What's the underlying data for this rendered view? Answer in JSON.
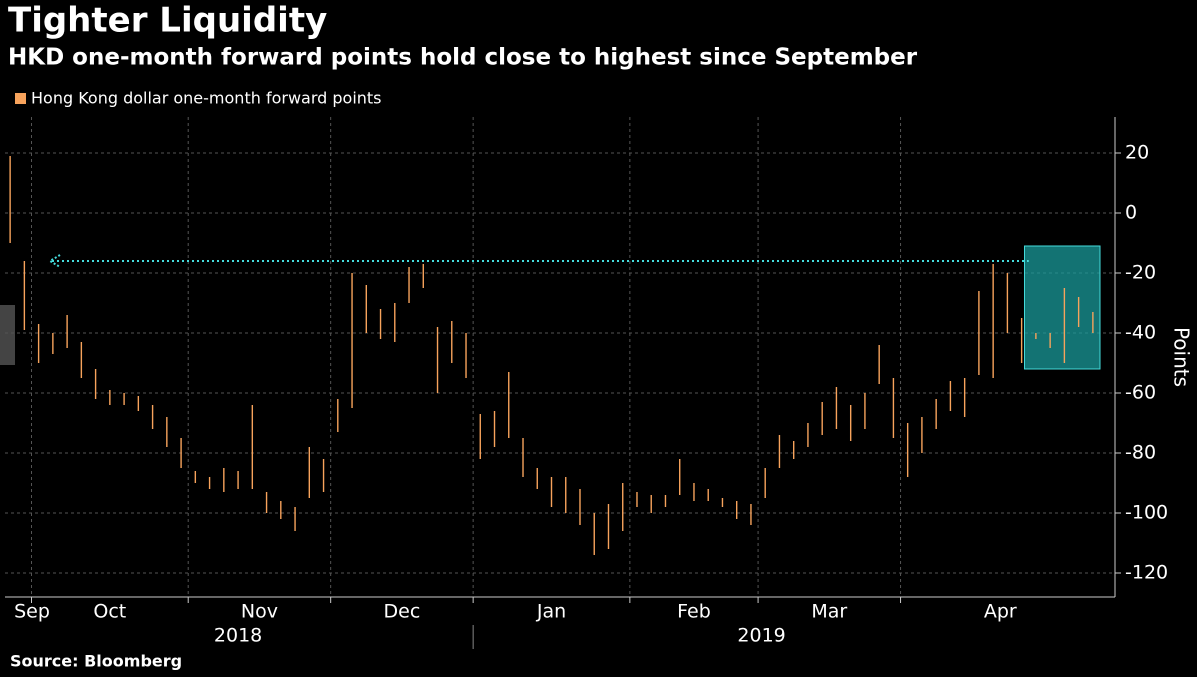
{
  "chart_data": {
    "type": "hilo",
    "title": "Tighter Liquidity",
    "subtitle": "HKD one-month forward points hold close to highest since September",
    "y_label": "Points",
    "source": "Source: Bloomberg",
    "categories": [
      {
        "year": "2018",
        "months": [
          "Sep",
          "Oct",
          "Nov",
          "Dec"
        ]
      },
      {
        "year": "2019",
        "months": [
          "Jan",
          "Feb",
          "Mar",
          "Apr"
        ]
      }
    ],
    "series": [
      {
        "name": "Hong Kong dollar one-month forward points",
        "color": "#f7a35c",
        "values": [
          [
            [
              [
                -10,
                19
              ],
              [
                -39,
                -16
              ]
            ],
            [
              [
                -50,
                -37
              ],
              [
                -47,
                -40
              ],
              [
                -45,
                -34
              ],
              [
                -55,
                -43
              ],
              [
                -62,
                -52
              ],
              [
                -64,
                -59
              ],
              [
                -64,
                -60
              ],
              [
                -66,
                -61
              ],
              [
                -72,
                -64
              ],
              [
                -78,
                -68
              ],
              [
                -85,
                -75
              ]
            ],
            [
              [
                -90,
                -86
              ],
              [
                -92,
                -88
              ],
              [
                -93,
                -85
              ],
              [
                -92,
                -86
              ],
              [
                -92,
                -64
              ],
              [
                -100,
                -93
              ],
              [
                -102,
                -96
              ],
              [
                -106,
                -98
              ],
              [
                -95,
                -78
              ],
              [
                -93,
                -82
              ]
            ],
            [
              [
                -73,
                -62
              ],
              [
                -65,
                -20
              ],
              [
                -40,
                -24
              ],
              [
                -42,
                -32
              ],
              [
                -43,
                -30
              ],
              [
                -30,
                -18
              ],
              [
                -25,
                -17
              ],
              [
                -60,
                -38
              ],
              [
                -50,
                -36
              ],
              [
                -55,
                -40
              ]
            ]
          ],
          [
            [
              [
                -82,
                -67
              ],
              [
                -78,
                -66
              ],
              [
                -75,
                -53
              ],
              [
                -88,
                -75
              ],
              [
                -92,
                -85
              ],
              [
                -98,
                -88
              ],
              [
                -100,
                -88
              ],
              [
                -104,
                -92
              ],
              [
                -114,
                -100
              ],
              [
                -112,
                -97
              ],
              [
                -106,
                -90
              ]
            ],
            [
              [
                -98,
                -93
              ],
              [
                -100,
                -94
              ],
              [
                -98,
                -94
              ],
              [
                -94,
                -82
              ],
              [
                -96,
                -90
              ],
              [
                -96,
                -92
              ],
              [
                -98,
                -95
              ],
              [
                -102,
                -96
              ],
              [
                -104,
                -97
              ]
            ],
            [
              [
                -95,
                -85
              ],
              [
                -85,
                -74
              ],
              [
                -82,
                -76
              ],
              [
                -78,
                -70
              ],
              [
                -74,
                -63
              ],
              [
                -72,
                -58
              ],
              [
                -76,
                -64
              ],
              [
                -72,
                -60
              ],
              [
                -57,
                -44
              ],
              [
                -75,
                -55
              ]
            ],
            [
              [
                -88,
                -70
              ],
              [
                -80,
                -68
              ],
              [
                -72,
                -62
              ],
              [
                -66,
                -56
              ],
              [
                -68,
                -55
              ],
              [
                -54,
                -26
              ],
              [
                -55,
                -17
              ],
              [
                -40,
                -20
              ],
              [
                -50,
                -35
              ],
              [
                -42,
                -40
              ],
              [
                -45,
                -40
              ],
              [
                -50,
                -25
              ],
              [
                -38,
                -28
              ],
              [
                -40,
                -33
              ]
            ]
          ]
        ]
      }
    ],
    "reference_value": -16,
    "ylim": [
      -128,
      32
    ],
    "yticks": [
      -120,
      -100,
      -80,
      -60,
      -40,
      -20,
      0,
      20
    ],
    "grid": true
  }
}
